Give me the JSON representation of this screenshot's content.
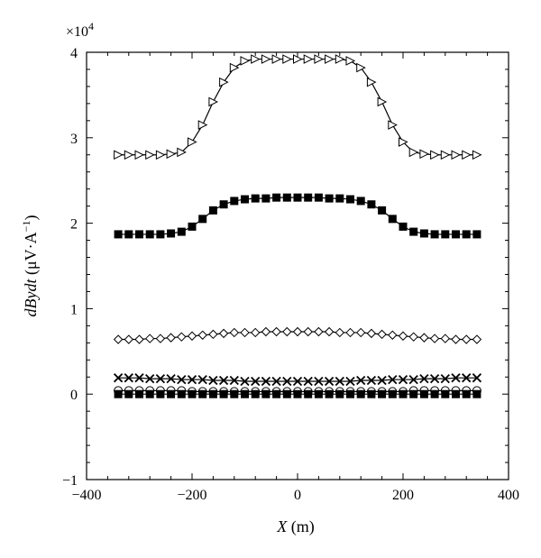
{
  "chart_data": {
    "type": "line",
    "xlabel": {
      "var": "X",
      "unit": " (m)"
    },
    "ylabel": {
      "var": "dBydt",
      "unit": "μV·A",
      "sup": "−1"
    },
    "y_multiplier": {
      "base": "×10",
      "exp": "4"
    },
    "xlim": [
      -400,
      400
    ],
    "ylim": [
      -1,
      4
    ],
    "x_ticks": [
      -400,
      -200,
      0,
      200,
      400
    ],
    "x_tick_labels": [
      "−400",
      "−200",
      "0",
      "200",
      "400"
    ],
    "y_ticks": [
      -1,
      0,
      1,
      2,
      3,
      4
    ],
    "y_tick_labels": [
      "−1",
      "0",
      "1",
      "2",
      "3",
      "4"
    ],
    "grid": false,
    "legend": "none",
    "x": [
      -340,
      -320,
      -300,
      -280,
      -260,
      -240,
      -220,
      -200,
      -180,
      -160,
      -140,
      -120,
      -100,
      -80,
      -60,
      -40,
      -20,
      0,
      20,
      40,
      60,
      80,
      100,
      120,
      140,
      160,
      180,
      200,
      220,
      240,
      260,
      280,
      300,
      320,
      340
    ],
    "series": [
      {
        "marker": "triangle-right",
        "values": [
          2.8,
          2.8,
          2.8,
          2.8,
          2.8,
          2.81,
          2.83,
          2.95,
          3.15,
          3.42,
          3.65,
          3.82,
          3.9,
          3.92,
          3.92,
          3.92,
          3.92,
          3.92,
          3.92,
          3.92,
          3.92,
          3.92,
          3.9,
          3.82,
          3.65,
          3.42,
          3.15,
          2.95,
          2.83,
          2.81,
          2.8,
          2.8,
          2.8,
          2.8,
          2.8
        ]
      },
      {
        "marker": "filled-square",
        "values": [
          1.87,
          1.87,
          1.87,
          1.87,
          1.87,
          1.88,
          1.9,
          1.96,
          2.05,
          2.15,
          2.22,
          2.26,
          2.28,
          2.29,
          2.29,
          2.3,
          2.3,
          2.3,
          2.3,
          2.3,
          2.29,
          2.29,
          2.28,
          2.26,
          2.22,
          2.15,
          2.05,
          1.96,
          1.9,
          1.88,
          1.87,
          1.87,
          1.87,
          1.87,
          1.87
        ]
      },
      {
        "marker": "diamond",
        "values": [
          0.64,
          0.64,
          0.64,
          0.65,
          0.65,
          0.66,
          0.67,
          0.68,
          0.69,
          0.7,
          0.71,
          0.72,
          0.72,
          0.72,
          0.73,
          0.73,
          0.73,
          0.73,
          0.73,
          0.73,
          0.73,
          0.72,
          0.72,
          0.72,
          0.71,
          0.7,
          0.69,
          0.68,
          0.67,
          0.66,
          0.65,
          0.65,
          0.64,
          0.64,
          0.64
        ]
      },
      {
        "marker": "x-mark",
        "values": [
          0.19,
          0.19,
          0.19,
          0.18,
          0.18,
          0.18,
          0.17,
          0.17,
          0.17,
          0.16,
          0.16,
          0.16,
          0.15,
          0.15,
          0.15,
          0.15,
          0.15,
          0.15,
          0.15,
          0.15,
          0.15,
          0.15,
          0.15,
          0.16,
          0.16,
          0.16,
          0.17,
          0.17,
          0.17,
          0.18,
          0.18,
          0.18,
          0.19,
          0.19,
          0.19
        ]
      },
      {
        "marker": "open-circle",
        "values": [
          0.04,
          0.04,
          0.04,
          0.04,
          0.04,
          0.04,
          0.04,
          0.03,
          0.03,
          0.03,
          0.03,
          0.03,
          0.03,
          0.03,
          0.03,
          0.03,
          0.03,
          0.03,
          0.03,
          0.03,
          0.03,
          0.03,
          0.03,
          0.03,
          0.03,
          0.03,
          0.03,
          0.03,
          0.04,
          0.04,
          0.04,
          0.04,
          0.04,
          0.04,
          0.04
        ]
      },
      {
        "marker": "filled-square",
        "values": [
          0.0,
          0.0,
          0.0,
          0.0,
          0.0,
          0.0,
          0.0,
          0.0,
          0.0,
          0.0,
          0.0,
          0.0,
          0.0,
          0.0,
          0.0,
          0.0,
          0.0,
          0.0,
          0.0,
          0.0,
          0.0,
          0.0,
          0.0,
          0.0,
          0.0,
          0.0,
          0.0,
          0.0,
          0.0,
          0.0,
          0.0,
          0.0,
          0.0,
          0.0,
          0.0
        ]
      }
    ]
  }
}
